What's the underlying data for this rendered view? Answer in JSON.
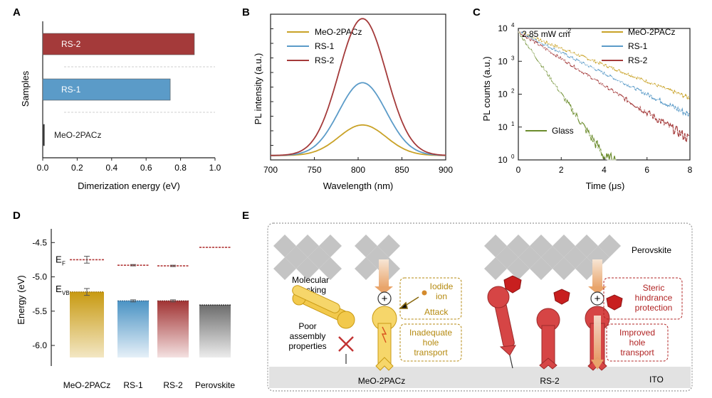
{
  "colors": {
    "meo": "#c9a227",
    "rs1": "#5b9bc8",
    "rs2": "#a43a3a",
    "glass": "#6b8c2c",
    "ef_line": "#b23a3a",
    "dark_red": "#a82424"
  },
  "panelA": {
    "letter": "A",
    "chart_data": {
      "type": "bar",
      "orientation": "horizontal",
      "categories": [
        "RS-2",
        "RS-1",
        "MeO-2PACz"
      ],
      "values": [
        0.88,
        0.74,
        0.01
      ],
      "xlabel": "Dimerization energy (eV)",
      "ylabel": "Samples",
      "xlim": [
        0,
        1.0
      ],
      "xticks": [
        "0.0",
        "0.2",
        "0.4",
        "0.6",
        "0.8",
        "1.0"
      ]
    }
  },
  "panelB": {
    "letter": "B",
    "chart_data": {
      "type": "line",
      "title": "",
      "xlabel": "Wavelength (nm)",
      "ylabel": "PL intensity (a.u.)",
      "xlim": [
        700,
        900
      ],
      "xticks": [
        "700",
        "750",
        "800",
        "850",
        "900"
      ],
      "peak_wavelength": 805,
      "series": [
        {
          "name": "MeO-2PACz",
          "peak": 0.21
        },
        {
          "name": "RS-1",
          "peak": 0.5
        },
        {
          "name": "RS-2",
          "peak": 0.94
        }
      ]
    }
  },
  "panelC": {
    "letter": "C",
    "chart_data": {
      "type": "line",
      "scale": "log",
      "annotation": "2.85 mW cm",
      "annotation_sup": "-2",
      "xlabel": "Time (μs)",
      "ylabel": "PL counts (a.u.)",
      "xlim": [
        0,
        8
      ],
      "ylim_log10": [
        0,
        4
      ],
      "xticks": [
        "0",
        "2",
        "4",
        "6",
        "8"
      ],
      "yticks": [
        {
          "base": "10",
          "exp": "0"
        },
        {
          "base": "10",
          "exp": "1"
        },
        {
          "base": "10",
          "exp": "2"
        },
        {
          "base": "10",
          "exp": "3"
        },
        {
          "base": "10",
          "exp": "4"
        }
      ],
      "series": [
        {
          "name": "MeO-2PACz",
          "amplitude_log10": 3.9,
          "tau_us": 1.72
        },
        {
          "name": "RS-1",
          "amplitude_log10": 3.9,
          "tau_us": 1.37
        },
        {
          "name": "RS-2",
          "amplitude_log10": 3.9,
          "tau_us": 1.06
        },
        {
          "name": "Glass",
          "amplitude_log10": 3.9,
          "tau_us": 0.46
        }
      ]
    }
  },
  "panelD": {
    "letter": "D",
    "chart_data": {
      "type": "bar",
      "ylabel": "Energy (eV)",
      "ylim": [
        -6.3,
        -4.3
      ],
      "yticks": [
        "-4.5",
        "-5.0",
        "-5.5",
        "-6.0"
      ],
      "ytick_values": [
        -4.5,
        -5.0,
        -5.5,
        -6.0
      ],
      "categories": [
        "MeO-2PACz",
        "RS-1",
        "RS-2",
        "Perovskite"
      ],
      "ef": [
        -4.75,
        -4.83,
        -4.84,
        -4.57
      ],
      "ef_err": [
        0.05,
        0.01,
        0.01,
        0
      ],
      "evb": [
        -5.22,
        -5.35,
        -5.35,
        -5.41
      ],
      "evb_err": [
        0.05,
        0.015,
        0.015,
        0
      ],
      "ef_label": "E",
      "ef_sub": "F",
      "evb_label": "E",
      "evb_sub": "VB"
    }
  },
  "panelE": {
    "letter": "E",
    "labels": {
      "perovskite": "Perovskite",
      "molecular_stacking_1": "Molecular",
      "molecular_stacking_2": "stacking",
      "poor_1": "Poor",
      "poor_2": "assembly",
      "poor_3": "properties",
      "iodide_1": "Iodide",
      "iodide_2": "ion",
      "attack": "Attack",
      "inadequate_1": "Inadequate",
      "inadequate_2": "hole",
      "inadequate_3": "transport",
      "steric_1": "Steric",
      "steric_2": "hindrance",
      "steric_3": "protection",
      "improved_1": "Improved",
      "improved_2": "hole",
      "improved_3": "transport",
      "meo": "MeO-2PACz",
      "rs2": "RS-2",
      "ito": "ITO",
      "plus": "+"
    }
  }
}
